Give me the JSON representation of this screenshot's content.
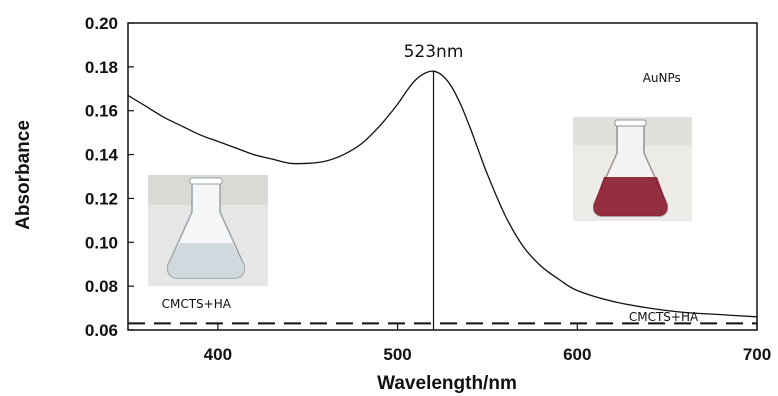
{
  "chart_data": {
    "type": "line",
    "title": "",
    "xlabel": "Wavelength/nm",
    "ylabel": "Absorbance",
    "xlim": [
      350,
      700
    ],
    "ylim": [
      0.06,
      0.2
    ],
    "x_ticks": [
      400,
      500,
      600,
      700
    ],
    "y_ticks": [
      0.06,
      0.08,
      0.1,
      0.12,
      0.14,
      0.16,
      0.18,
      0.2
    ],
    "x_tick_labels": [
      "400",
      "500",
      "600",
      "700"
    ],
    "y_tick_labels": [
      "0.06",
      "0.08",
      "0.10",
      "0.12",
      "0.14",
      "0.16",
      "0.18",
      "0.20"
    ],
    "grid": false,
    "series": [
      {
        "name": "AuNPs",
        "style": "solid",
        "color": "#111111",
        "x": [
          350,
          360,
          370,
          380,
          390,
          400,
          410,
          420,
          430,
          440,
          450,
          460,
          470,
          480,
          490,
          500,
          505,
          510,
          515,
          520,
          525,
          530,
          535,
          540,
          545,
          550,
          560,
          570,
          580,
          590,
          600,
          620,
          640,
          660,
          680,
          700
        ],
        "y": [
          0.167,
          0.162,
          0.157,
          0.153,
          0.149,
          0.146,
          0.143,
          0.14,
          0.138,
          0.136,
          0.136,
          0.137,
          0.14,
          0.145,
          0.153,
          0.163,
          0.169,
          0.174,
          0.177,
          0.178,
          0.176,
          0.171,
          0.163,
          0.153,
          0.142,
          0.131,
          0.112,
          0.098,
          0.089,
          0.083,
          0.078,
          0.073,
          0.07,
          0.068,
          0.067,
          0.066
        ]
      },
      {
        "name": "CMCTS+HA",
        "style": "dashed",
        "color": "#111111",
        "x": [
          350,
          700
        ],
        "y": [
          0.063,
          0.063
        ]
      }
    ],
    "peak": {
      "x": 520,
      "label": "523nm"
    },
    "annotations": [
      {
        "text": "AuNPs",
        "x": 647,
        "y": 0.173
      },
      {
        "text": "CMCTS+HA",
        "x": 388,
        "y": 0.07
      },
      {
        "text": "CMCTS+HA",
        "x": 648,
        "y": 0.064
      }
    ],
    "insets": [
      {
        "name": "CMCTS+HA flask photo",
        "liquid_color": "#c9d3d8"
      },
      {
        "name": "AuNPs flask photo",
        "liquid_color": "#8a1a2c"
      }
    ]
  }
}
